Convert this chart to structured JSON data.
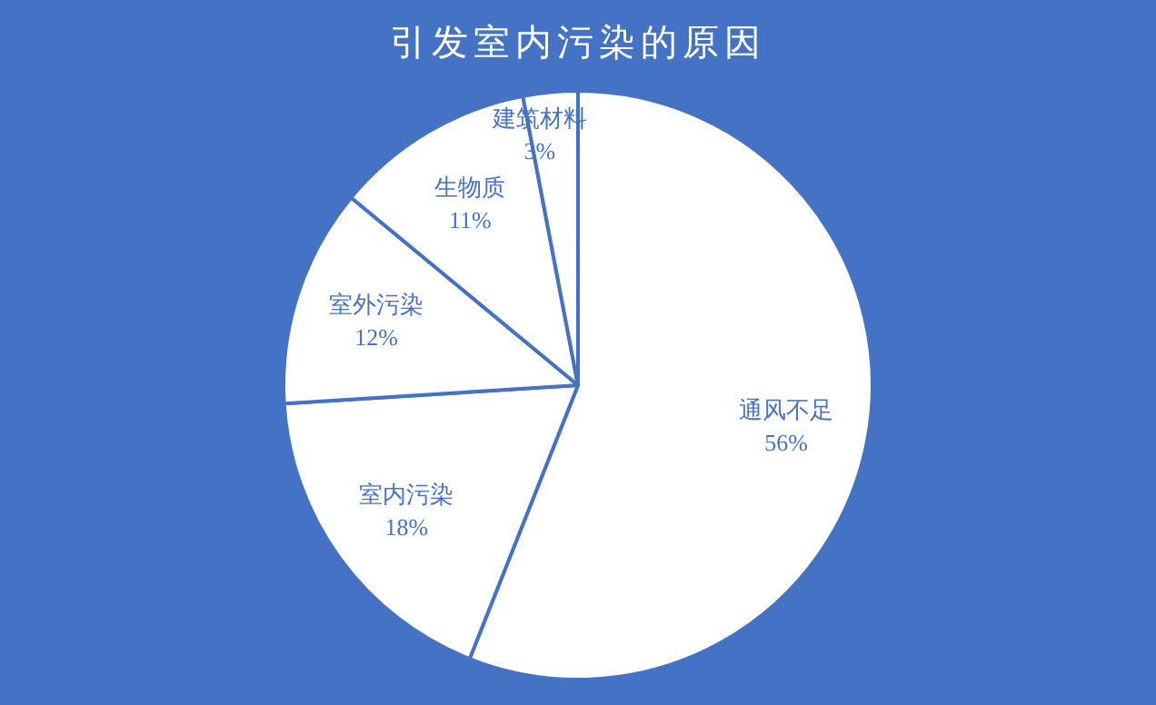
{
  "chart_data": {
    "type": "pie",
    "title": "引发室内污染的原因",
    "categories": [
      "通风不足",
      "室内污染",
      "室外污染",
      "生物质",
      "建筑材料"
    ],
    "values": [
      56,
      18,
      12,
      11,
      3
    ],
    "colors": [
      "#ffffff",
      "#ffffff",
      "#ffffff",
      "#ffffff",
      "#ffffff"
    ],
    "value_labels": [
      "56%",
      "18%",
      "12%",
      "11%",
      "3%"
    ]
  }
}
